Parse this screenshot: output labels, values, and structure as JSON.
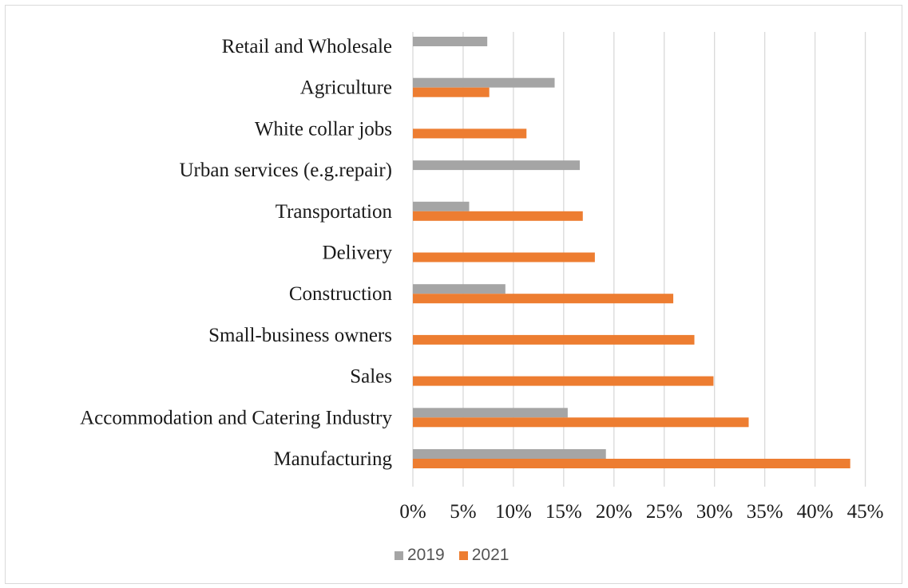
{
  "chart_data": {
    "type": "bar",
    "orientation": "horizontal",
    "categories": [
      "Retail and Wholesale",
      "Agriculture",
      "White collar jobs",
      "Urban services (e.g.repair)",
      "Transportation",
      "Delivery",
      "Construction",
      "Small-business owners",
      "Sales",
      "Accommodation and Catering Industry",
      "Manufacturing"
    ],
    "series": [
      {
        "name": "2019",
        "color": "#a5a5a5",
        "values": [
          7.4,
          14.1,
          null,
          16.6,
          5.6,
          null,
          9.2,
          null,
          null,
          15.4,
          19.2
        ]
      },
      {
        "name": "2021",
        "color": "#ed7d31",
        "values": [
          null,
          7.6,
          11.3,
          null,
          16.9,
          18.1,
          25.9,
          28.0,
          29.9,
          33.4,
          43.5
        ]
      }
    ],
    "xlim": [
      0,
      45
    ],
    "x_ticks": [
      "0%",
      "5%",
      "10%",
      "15%",
      "20%",
      "25%",
      "30%",
      "35%",
      "40%",
      "45%"
    ],
    "grid": "vertical",
    "legend_position": "bottom",
    "title": "",
    "xlabel": "",
    "ylabel": ""
  }
}
